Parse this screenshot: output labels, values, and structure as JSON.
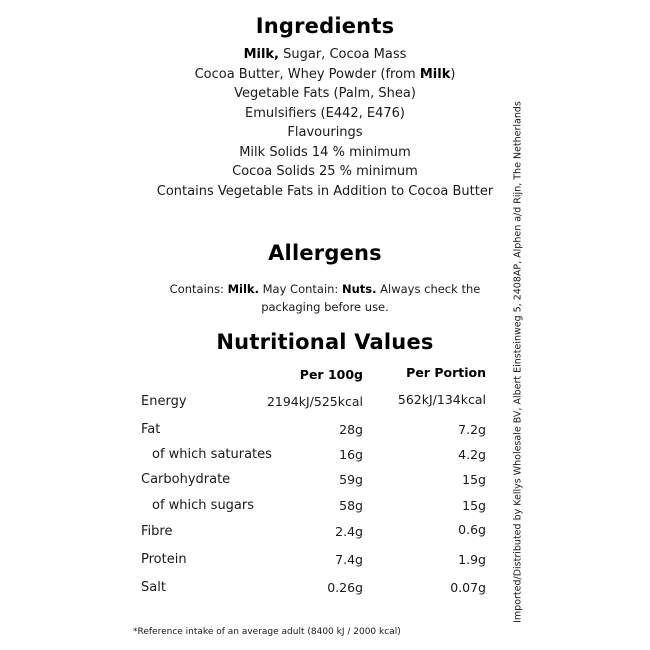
{
  "ingredients": {
    "title": "Ingredients",
    "line1": {
      "bold": "Milk,",
      "rest": " Sugar, Cocoa Mass"
    },
    "line2": {
      "pre": "Cocoa Butter, Whey Powder (from ",
      "bold": "Milk",
      "post": ")"
    },
    "line3": "Vegetable Fats (Palm, Shea)",
    "line4": "Emulsifiers (E442, E476)",
    "line5": "Flavourings",
    "line6": "Milk Solids 14 % minimum",
    "line7": "Cocoa Solids 25 % minimum",
    "line8": "Contains Vegetable Fats in Addition to Cocoa Butter"
  },
  "allergens": {
    "title": "Allergens",
    "t1": "Contains: ",
    "b1": "Milk.",
    "t2": " May Contain: ",
    "b2": "Nuts.",
    "t3": " Always check the packaging before use."
  },
  "nutrition": {
    "title": "Nutritional Values",
    "col1": "Per 100g",
    "col2": "Per Portion",
    "rows": [
      {
        "label": "Energy",
        "per100g": "2194kJ/525kcal",
        "portion": "562kJ/134kcal"
      },
      {
        "label": "Fat",
        "per100g": "28g",
        "portion": "7.2g"
      },
      {
        "label": "of which saturates",
        "per100g": "16g",
        "portion": "4.2g"
      },
      {
        "label": "Carbohydrate",
        "per100g": "59g",
        "portion": "15g"
      },
      {
        "label": "of which sugars",
        "per100g": "58g",
        "portion": "15g"
      },
      {
        "label": "Fibre",
        "per100g": "2.4g",
        "portion": "0.6g"
      },
      {
        "label": "Protein",
        "per100g": "7.4g",
        "portion": "1.9g"
      },
      {
        "label": "Salt",
        "per100g": "0.26g",
        "portion": "0.07g"
      }
    ],
    "footnote": "*Reference intake of an average adult (8400 kJ / 2000 kcal)"
  },
  "distributor": "Imported/Distributed by Kellys Wholesale BV, Albert Einsteinweg 5, 2408AP, Alphen a/d Rijn, The Netherlands"
}
